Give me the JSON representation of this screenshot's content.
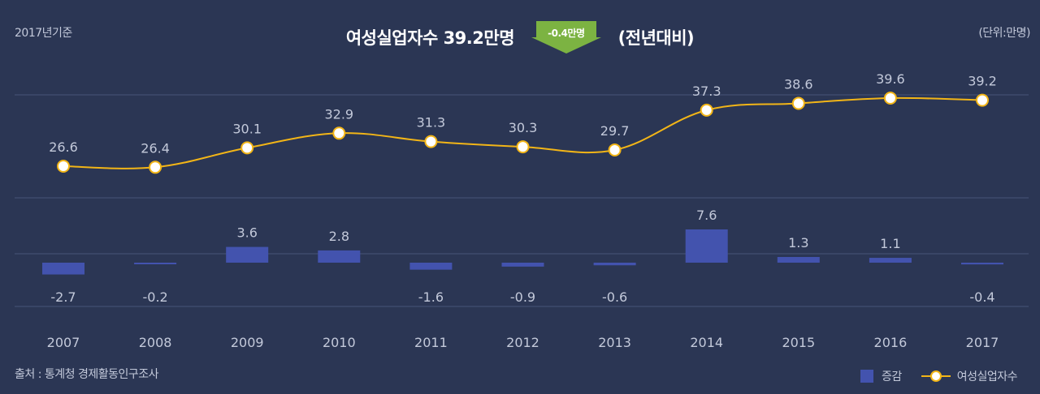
{
  "header": {
    "base_year": "2017년기준",
    "headline_left": "여성실업자수  39.2만명",
    "badge": "-0.4만명",
    "headline_right": "(전년대비)",
    "unit": "(단위:만명)"
  },
  "footer": {
    "source": "출처 : 통계청 경제활동인구조사"
  },
  "legend": {
    "bar_label": "증감",
    "line_label": "여성실업자수"
  },
  "colors": {
    "background": "#2b3654",
    "bar": "#4353ae",
    "line": "#f2b517",
    "badge": "#7cb342"
  },
  "chart_data": {
    "type": "bar+line",
    "categories": [
      "2007",
      "2008",
      "2009",
      "2010",
      "2011",
      "2012",
      "2013",
      "2014",
      "2015",
      "2016",
      "2017"
    ],
    "series": [
      {
        "name": "여성실업자수",
        "type": "line",
        "values": [
          26.6,
          26.4,
          30.1,
          32.9,
          31.3,
          30.3,
          29.7,
          37.3,
          38.6,
          39.6,
          39.2
        ]
      },
      {
        "name": "증감",
        "type": "bar",
        "values": [
          -2.7,
          -0.2,
          3.6,
          2.8,
          -1.6,
          -0.9,
          -0.6,
          7.6,
          1.3,
          1.1,
          -0.4
        ]
      }
    ],
    "value_labels": {
      "line": [
        "26.6",
        "26.4",
        "30.1",
        "32.9",
        "31.3",
        "30.3",
        "29.7",
        "37.3",
        "38.6",
        "39.6",
        "39.2"
      ],
      "bar": [
        "-2.7",
        "-0.2",
        "3.6",
        "2.8",
        "-1.6",
        "-0.9",
        "-0.6",
        "7.6",
        "1.3",
        "1.1",
        "-0.4"
      ]
    },
    "grid": true,
    "legend_position": "bottom-right"
  }
}
